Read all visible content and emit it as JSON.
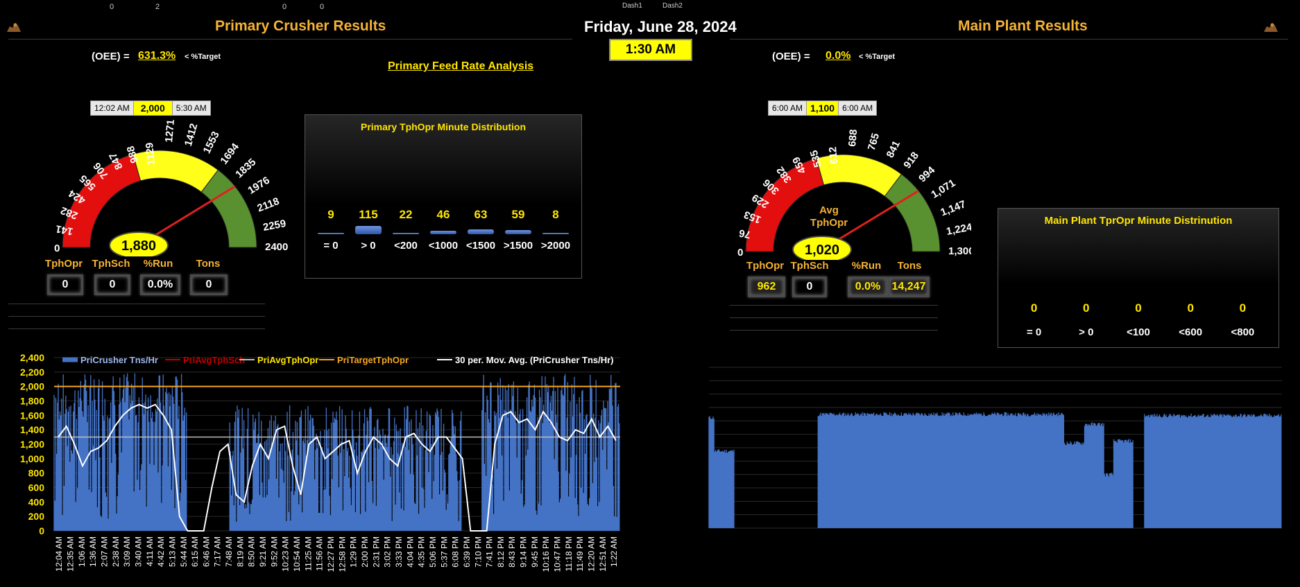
{
  "top_numbers": [
    "0",
    "2",
    "0",
    "0"
  ],
  "tabs": [
    "Dash1",
    "Dash2"
  ],
  "date": "Friday, June 28, 2024",
  "time": "1:30 AM",
  "left": {
    "title": "Primary Crusher Results",
    "oee_label": "(OEE)  =",
    "oee_value": "631.3%",
    "oee_target": "< %Target",
    "feed_link": "Primary Feed Rate Analysis",
    "time_box": {
      "start": "12:02 AM",
      "target": "2,000",
      "end": "5:30 AM"
    },
    "gauge": {
      "value_label": "1,880",
      "value": 1880,
      "min": 0,
      "max": 2400,
      "ticks": [
        "0",
        "141",
        "282",
        "424",
        "565",
        "706",
        "847",
        "988",
        "1129",
        "1271",
        "1412",
        "1553",
        "1694",
        "1835",
        "1976",
        "2118",
        "2259",
        "2400"
      ],
      "bands": [
        {
          "to": 988,
          "color": "#e30f0f"
        },
        {
          "to": 1694,
          "color": "#ffff1a"
        },
        {
          "to": 2400,
          "color": "#5a9130"
        }
      ]
    },
    "stats": [
      {
        "label": "TphOpr",
        "value": "0"
      },
      {
        "label": "TphSch",
        "value": "0"
      },
      {
        "label": "%Run",
        "value": "0.0%"
      },
      {
        "label": "Tons",
        "value": "0"
      }
    ],
    "dist": {
      "title": "Primary  TphOpr  Minute  Distribution",
      "values": [
        "9",
        "115",
        "22",
        "46",
        "63",
        "59",
        "8"
      ],
      "fractions": [
        0.08,
        1.0,
        0.19,
        0.4,
        0.55,
        0.51,
        0.07
      ],
      "categories": [
        "= 0",
        "> 0",
        "<200",
        "<1000",
        "<1500",
        ">1500",
        ">2000"
      ]
    }
  },
  "right": {
    "title": "Main Plant Results",
    "oee_label": "(OEE)  =",
    "oee_value": "0.0%",
    "oee_target": "< %Target",
    "time_box": {
      "start": "6:00 AM",
      "target": "1,100",
      "end": "6:00 AM"
    },
    "gauge": {
      "value_label": "1,020",
      "value": 1020,
      "min": 0,
      "max": 1300,
      "center_label_1": "Avg",
      "center_label_2": "TphOpr",
      "ticks": [
        "0",
        "76",
        "153",
        "229",
        "306",
        "382",
        "459",
        "535",
        "612",
        "688",
        "765",
        "841",
        "918",
        "994",
        "1,071",
        "1,147",
        "1,224",
        "1,300"
      ],
      "bands": [
        {
          "to": 535,
          "color": "#e30f0f"
        },
        {
          "to": 918,
          "color": "#ffff1a"
        },
        {
          "to": 1300,
          "color": "#5a9130"
        }
      ]
    },
    "stats": [
      {
        "label": "TphOpr",
        "value": "962"
      },
      {
        "label": "TphSch",
        "value": "0"
      },
      {
        "label": "%Run",
        "value": "0.0%"
      },
      {
        "label": "Tons",
        "value": "14,247"
      }
    ],
    "dist": {
      "title": "Main Plant TprOpr Minute Distrinution",
      "values": [
        "0",
        "0",
        "0",
        "0",
        "0"
      ],
      "categories": [
        "= 0",
        "> 0",
        "<100",
        "<600",
        "<800"
      ]
    }
  },
  "chart_data": [
    {
      "type": "bar",
      "legend": [
        "PriCrusher Tns/Hr",
        "PriAvgTphSch",
        "PriAvgTphOpr",
        "PriTargetTphOpr",
        "30 per. Mov. Avg. (PriCrusher Tns/Hr)"
      ],
      "legend_colors": [
        "#4472c4",
        "#c00000",
        "#bfbfbf",
        "#f5a623",
        "#ffffff"
      ],
      "ylim": [
        0,
        2400
      ],
      "y_ticks": [
        "2,400",
        "2,200",
        "2,000",
        "1,800",
        "1,600",
        "1,400",
        "1,200",
        "1,000",
        "800",
        "600",
        "400",
        "200",
        "0"
      ],
      "x_ticks": [
        "12:04 AM",
        "12:35 AM",
        "1:06 AM",
        "1:36 AM",
        "2:07 AM",
        "2:38 AM",
        "3:09 AM",
        "3:40 AM",
        "4:11 AM",
        "4:42 AM",
        "5:13 AM",
        "5:44 AM",
        "6:15 AM",
        "6:46 AM",
        "7:17 AM",
        "7:48 AM",
        "8:19 AM",
        "8:50 AM",
        "9:21 AM",
        "9:52 AM",
        "10:23 AM",
        "10:54 AM",
        "11:25 AM",
        "11:56 AM",
        "12:27 PM",
        "12:58 PM",
        "1:29 PM",
        "2:00 PM",
        "2:31 PM",
        "3:02 PM",
        "3:33 PM",
        "4:04 PM",
        "4:35 PM",
        "5:06 PM",
        "5:37 PM",
        "6:08 PM",
        "6:39 PM",
        "7:10 PM",
        "7:41 PM",
        "8:12 PM",
        "8:43 PM",
        "9:14 PM",
        "9:45 PM",
        "10:16 PM",
        "10:47 PM",
        "11:18 PM",
        "11:49 PM",
        "12:20 AM",
        "12:51 AM",
        "1:22 AM"
      ],
      "target_line": 2000,
      "avg_opr_line": 1300,
      "segments": [
        {
          "from": 0.0,
          "to": 0.235,
          "level": 1700
        },
        {
          "from": 0.235,
          "to": 0.31,
          "level": 0
        },
        {
          "from": 0.31,
          "to": 0.72,
          "level": 1250
        },
        {
          "from": 0.72,
          "to": 0.755,
          "level": 0
        },
        {
          "from": 0.755,
          "to": 1.0,
          "level": 1700
        }
      ],
      "moving_avg": [
        1300,
        1450,
        1200,
        900,
        1100,
        1150,
        1250,
        1450,
        1600,
        1700,
        1750,
        1700,
        1750,
        1600,
        1400,
        200,
        0,
        0,
        0,
        600,
        1100,
        1200,
        500,
        400,
        900,
        1200,
        1000,
        1400,
        1450,
        900,
        500,
        1200,
        1300,
        1000,
        1100,
        1200,
        1250,
        800,
        1100,
        1300,
        1200,
        1000,
        900,
        1300,
        1350,
        1200,
        1100,
        1300,
        1300,
        1150,
        1000,
        0,
        0,
        0,
        1200,
        1600,
        1650,
        1500,
        1550,
        1400,
        1650,
        1500,
        1300,
        1250,
        1400,
        1350,
        1550,
        1300,
        1450,
        1250
      ]
    },
    {
      "type": "bar",
      "ylim": [
        0,
        2400
      ],
      "segments": [
        {
          "from": 0.0,
          "to": 0.01,
          "level": 1650
        },
        {
          "from": 0.01,
          "to": 0.044,
          "level": 1150
        },
        {
          "from": 0.044,
          "to": 0.19,
          "level": 0
        },
        {
          "from": 0.19,
          "to": 0.62,
          "level": 1700
        },
        {
          "from": 0.62,
          "to": 0.655,
          "level": 1270
        },
        {
          "from": 0.655,
          "to": 0.69,
          "level": 1550
        },
        {
          "from": 0.69,
          "to": 0.705,
          "level": 800
        },
        {
          "from": 0.705,
          "to": 0.74,
          "level": 1300
        },
        {
          "from": 0.74,
          "to": 0.76,
          "level": 0
        },
        {
          "from": 0.76,
          "to": 1.0,
          "level": 1680
        }
      ]
    }
  ]
}
